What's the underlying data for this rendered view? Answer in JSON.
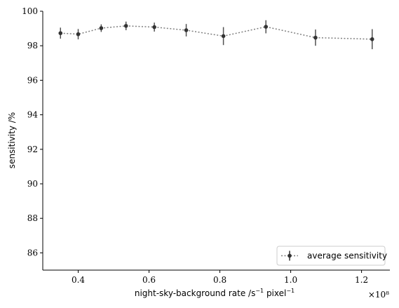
{
  "chart_data": {
    "type": "line",
    "x_scale_label": "×10⁸",
    "x_multiplier": 100000000,
    "xlabel_main": "night-sky-background rate /s",
    "xlabel_exp1": "−1",
    "xlabel_mid": " pixel",
    "xlabel_exp2": "−1",
    "ylabel": "sensitivity /%",
    "xlim": [
      0.3,
      1.28
    ],
    "ylim": [
      85,
      100
    ],
    "xticks": [
      0.4,
      0.6,
      0.8,
      1.0,
      1.2
    ],
    "xtick_labels": [
      "0.4",
      "0.6",
      "0.8",
      "1.0",
      "1.2"
    ],
    "yticks": [
      86,
      88,
      90,
      92,
      94,
      96,
      98,
      100
    ],
    "ytick_labels": [
      "86",
      "88",
      "90",
      "92",
      "94",
      "96",
      "98",
      "100"
    ],
    "grid": false,
    "legend_position": "lower-right",
    "series": [
      {
        "name": "average sensitivity",
        "color": "#333333",
        "line_color": "#7f7f7f",
        "x": [
          0.35,
          0.4,
          0.465,
          0.535,
          0.615,
          0.705,
          0.81,
          0.93,
          1.07,
          1.23
        ],
        "y": [
          98.73,
          98.67,
          99.02,
          99.15,
          99.08,
          98.9,
          98.56,
          99.1,
          98.47,
          98.38
        ],
        "yerr": [
          0.32,
          0.3,
          0.22,
          0.25,
          0.26,
          0.36,
          0.52,
          0.38,
          0.47,
          0.58
        ]
      }
    ]
  }
}
